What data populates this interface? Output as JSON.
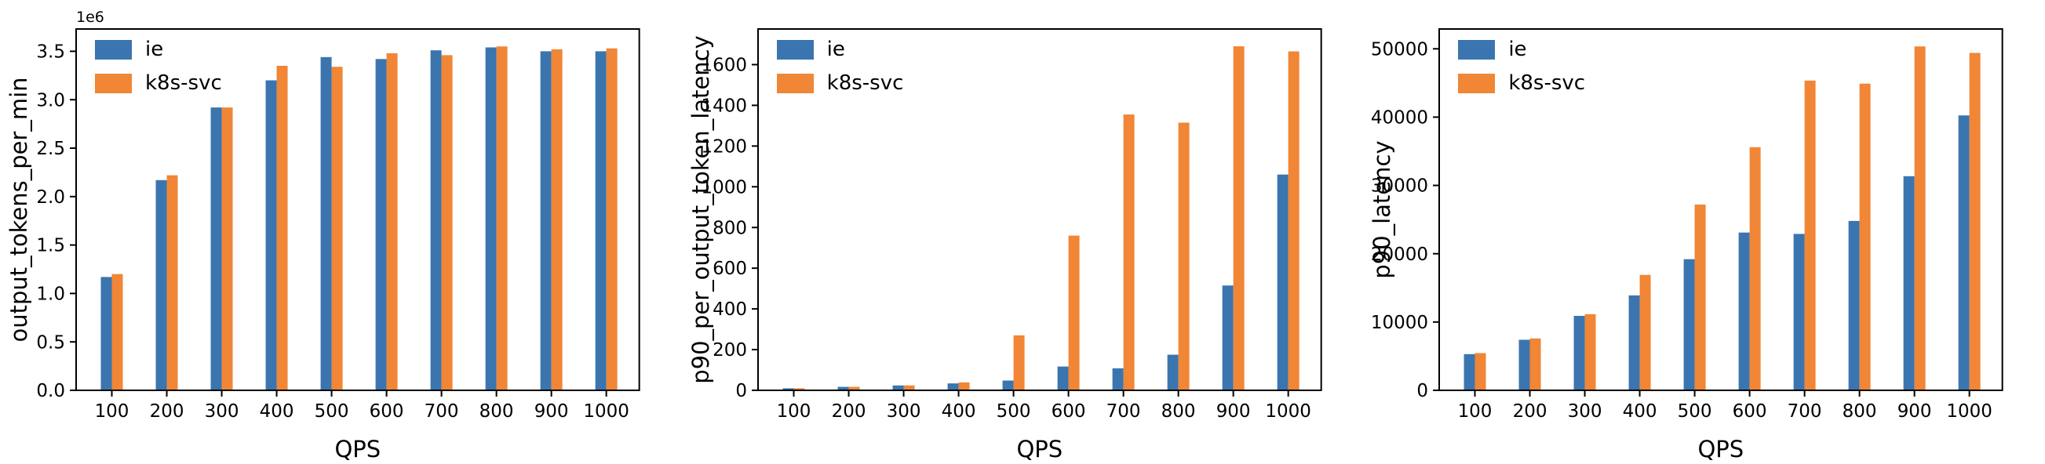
{
  "figure": {
    "background": "#ffffff",
    "axis_color": "#000000",
    "series_colors": {
      "ie": "#3b75af",
      "k8s-svc": "#f08636"
    }
  },
  "chart_data": [
    {
      "type": "bar",
      "title": "",
      "ylabel": "output_tokens_per_min",
      "xlabel": "QPS",
      "offset_text": "1e6",
      "grid": false,
      "legend_position": "upper left",
      "categories": [
        "100",
        "200",
        "300",
        "400",
        "500",
        "600",
        "700",
        "800",
        "900",
        "1000"
      ],
      "series": [
        {
          "name": "ie",
          "color": "#3b75af",
          "values": [
            1170000,
            2170000,
            2920000,
            3200000,
            3440000,
            3420000,
            3510000,
            3540000,
            3500000,
            3500000
          ]
        },
        {
          "name": "k8s-svc",
          "color": "#f08636",
          "values": [
            1200000,
            2220000,
            2920000,
            3350000,
            3340000,
            3480000,
            3460000,
            3550000,
            3520000,
            3530000
          ]
        }
      ],
      "yticks": [
        0,
        500000,
        1000000,
        1500000,
        2000000,
        2500000,
        3000000,
        3500000
      ],
      "ytick_labels": [
        "0.0",
        "0.5",
        "1.0",
        "1.5",
        "2.0",
        "2.5",
        "3.0",
        "3.5"
      ],
      "ylim": [
        0,
        3730000
      ]
    },
    {
      "type": "bar",
      "title": "",
      "ylabel": "p90_per_output_token_latency",
      "xlabel": "QPS",
      "offset_text": "",
      "grid": false,
      "legend_position": "upper left",
      "categories": [
        "100",
        "200",
        "300",
        "400",
        "500",
        "600",
        "700",
        "800",
        "900",
        "1000"
      ],
      "series": [
        {
          "name": "ie",
          "color": "#3b75af",
          "values": [
            10,
            17,
            24,
            34,
            48,
            117,
            108,
            175,
            515,
            1060
          ]
        },
        {
          "name": "k8s-svc",
          "color": "#f08636",
          "values": [
            10,
            17,
            24,
            39,
            270,
            760,
            1355,
            1315,
            1690,
            1665
          ]
        }
      ],
      "yticks": [
        0,
        200,
        400,
        600,
        800,
        1000,
        1200,
        1400,
        1600
      ],
      "ytick_labels": [
        "0",
        "200",
        "400",
        "600",
        "800",
        "1000",
        "1200",
        "1400",
        "1600"
      ],
      "ylim": [
        0,
        1775
      ]
    },
    {
      "type": "bar",
      "title": "",
      "ylabel": "p90_latency",
      "xlabel": "QPS",
      "offset_text": "",
      "grid": false,
      "legend_position": "upper left",
      "categories": [
        "100",
        "200",
        "300",
        "400",
        "500",
        "600",
        "700",
        "800",
        "900",
        "1000"
      ],
      "series": [
        {
          "name": "ie",
          "color": "#3b75af",
          "values": [
            5300,
            7400,
            10900,
            13900,
            19200,
            23100,
            22900,
            24800,
            31350,
            40250
          ]
        },
        {
          "name": "k8s-svc",
          "color": "#f08636",
          "values": [
            5450,
            7600,
            11150,
            16900,
            27200,
            35600,
            45350,
            44900,
            50350,
            49400
          ]
        }
      ],
      "yticks": [
        0,
        10000,
        20000,
        30000,
        40000,
        50000
      ],
      "ytick_labels": [
        "0",
        "10000",
        "20000",
        "30000",
        "40000",
        "50000"
      ],
      "ylim": [
        0,
        52900
      ]
    }
  ]
}
